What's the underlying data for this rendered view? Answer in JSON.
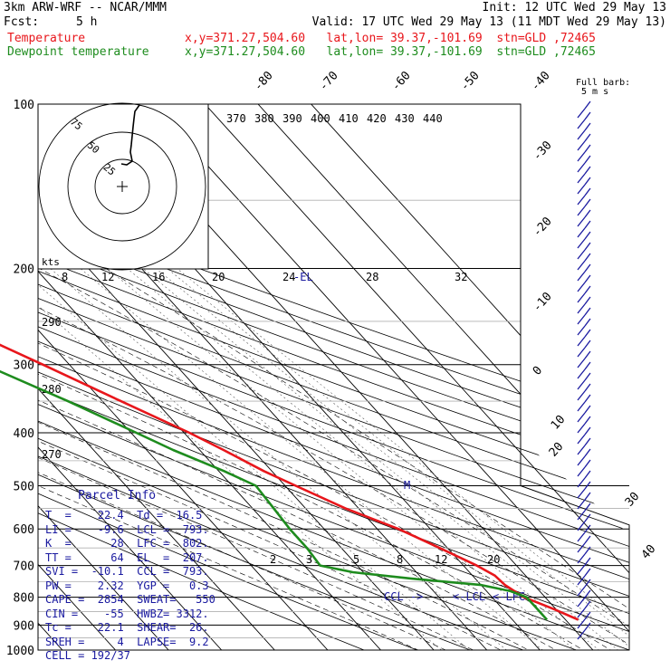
{
  "header": {
    "model": "3km ARW-WRF -- NCAR/MMM",
    "init": "Init: 12 UTC Wed 29 May 13",
    "fcst_label": "Fcst:",
    "fcst_value": "5 h",
    "valid": "Valid: 17 UTC Wed 29 May 13 (11 MDT Wed 29 May 13)",
    "temp_label": "Temperature",
    "temp_info": "x,y=371.27,504.60   lat,lon= 39.37,-101.69  stn=GLD ,72465",
    "dew_label": "Dewpoint temperature",
    "dew_info": "x,y=371.27,504.60   lat,lon= 39.37,-101.69  stn=GLD ,72465"
  },
  "colors": {
    "temperature": "#e8161b",
    "dewpoint": "#1e8c1e",
    "axis": "#000000",
    "parcel_text": "#1a1aa0",
    "guide": "#b0b0b0"
  },
  "wind_legend": {
    "line1": "Full barb:",
    "line2": "5 m s"
  },
  "chart_data": {
    "type": "line",
    "title": "",
    "y_axis": {
      "label": "",
      "scale": "log",
      "range_hpa": [
        1000,
        100
      ],
      "ticks": [
        100,
        200,
        300,
        400,
        500,
        600,
        700,
        800,
        900,
        1000
      ]
    },
    "isotherm_labels": [
      -80,
      -70,
      -60,
      -50,
      -40,
      -30,
      -20,
      -10,
      0,
      10,
      20,
      30,
      40
    ],
    "theta_labels": [
      370,
      380,
      390,
      400,
      410,
      420,
      430,
      440
    ],
    "dry_adiabat_labels": [
      290,
      280,
      270
    ],
    "mixing_ratio_labels_upper": [
      8,
      12,
      16,
      20,
      24,
      28,
      32
    ],
    "mixing_ratio_labels_lower": [
      2,
      3,
      5,
      8,
      12,
      20
    ],
    "el_label": "EL",
    "lcl_labels": [
      "CCL",
      "LCL",
      "LFC"
    ],
    "series": [
      {
        "name": "Temperature",
        "points": [
          {
            "p": 880,
            "t": 22.4
          },
          {
            "p": 840,
            "t": 19.5
          },
          {
            "p": 800,
            "t": 16.0
          },
          {
            "p": 760,
            "t": 14.5
          },
          {
            "p": 730,
            "t": 14.2
          },
          {
            "p": 700,
            "t": 12.5
          },
          {
            "p": 650,
            "t": 8.5
          },
          {
            "p": 600,
            "t": 4.0
          },
          {
            "p": 550,
            "t": -2.5
          },
          {
            "p": 500,
            "t": -8.0
          },
          {
            "p": 470,
            "t": -11.5
          },
          {
            "p": 430,
            "t": -15.5
          },
          {
            "p": 400,
            "t": -19.0
          },
          {
            "p": 350,
            "t": -26.5
          },
          {
            "p": 300,
            "t": -35.0
          },
          {
            "p": 270,
            "t": -41.0
          },
          {
            "p": 250,
            "t": -45.5
          },
          {
            "p": 230,
            "t": -48.0
          },
          {
            "p": 210,
            "t": -49.5
          },
          {
            "p": 200,
            "t": -50.5
          },
          {
            "p": 180,
            "t": -52.5
          },
          {
            "p": 160,
            "t": -55.0
          },
          {
            "p": 140,
            "t": -56.0
          },
          {
            "p": 120,
            "t": -56.5
          },
          {
            "p": 100,
            "t": -57.0
          }
        ]
      },
      {
        "name": "Dewpoint temperature",
        "points": [
          {
            "p": 880,
            "t": 16.5
          },
          {
            "p": 840,
            "t": 16.5
          },
          {
            "p": 800,
            "t": 16.5
          },
          {
            "p": 780,
            "t": 14.5
          },
          {
            "p": 760,
            "t": 10.0
          },
          {
            "p": 740,
            "t": -2.0
          },
          {
            "p": 720,
            "t": -12.0
          },
          {
            "p": 700,
            "t": -17.0
          },
          {
            "p": 650,
            "t": -16.5
          },
          {
            "p": 600,
            "t": -16.5
          },
          {
            "p": 550,
            "t": -16.0
          },
          {
            "p": 500,
            "t": -15.5
          },
          {
            "p": 470,
            "t": -19.0
          },
          {
            "p": 430,
            "t": -25.0
          },
          {
            "p": 400,
            "t": -29.0
          },
          {
            "p": 350,
            "t": -36.5
          },
          {
            "p": 300,
            "t": -46.0
          },
          {
            "p": 250,
            "t": -56.0
          },
          {
            "p": 200,
            "t": -62.5
          },
          {
            "p": 180,
            "t": -64.0
          },
          {
            "p": 150,
            "t": -66.5
          },
          {
            "p": 130,
            "t": -70.0
          },
          {
            "p": 120,
            "t": -73.0
          },
          {
            "p": 100,
            "t": -67.0
          }
        ]
      }
    ],
    "hodograph": {
      "units": "kts",
      "rings": [
        25,
        50,
        75
      ]
    }
  },
  "parcel_info": {
    "title": "Parcel Info",
    "rows": [
      "T  =    22.4  Td =  16.5",
      "LI =    -9.6  LCL =  793.",
      "K  =      28  LFC =  802.",
      "TT =      64  EL  =  207.",
      "SVI =  -10.1  CCL =  793.",
      "PW =    2.32  YGP =   0.3",
      "CAPE =  2854  SWEAT=   550",
      "CIN =    -55  HWBZ= 3312.",
      "Tc =    22.1  SHEAR=  26.",
      "SREH =     4  LAPSE=  9.2",
      "CELL = 192/37"
    ]
  }
}
